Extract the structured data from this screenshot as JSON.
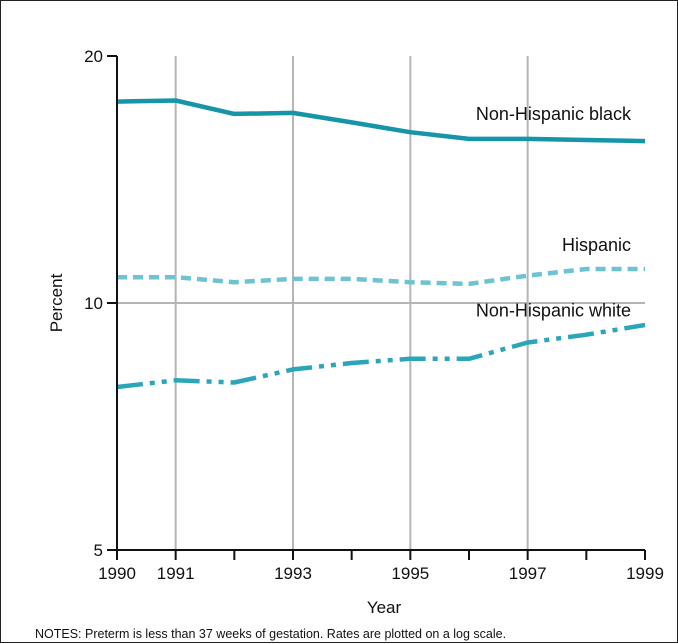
{
  "chart_data": {
    "type": "line",
    "title": "",
    "xlabel": "Year",
    "ylabel": "Percent",
    "yscale": "log",
    "ylim": [
      5,
      20
    ],
    "xlim": [
      1990,
      1999
    ],
    "x": [
      1990,
      1991,
      1992,
      1993,
      1994,
      1995,
      1996,
      1997,
      1998,
      1999
    ],
    "x_tick_labels": [
      "1990",
      "1991",
      "1993",
      "1995",
      "1997",
      "1999"
    ],
    "y_tick_labels": [
      "20",
      "10",
      "5"
    ],
    "grid": "vertical lines at 1991, 1993, 1995, 1997 and a horizontal line at 10",
    "series": [
      {
        "name": "Non-Hispanic black",
        "values": [
          17.6,
          17.65,
          17.0,
          17.05,
          16.6,
          16.15,
          15.85,
          15.85,
          15.8,
          15.75
        ],
        "color": "#1795a8",
        "line_style": "solid"
      },
      {
        "name": "Hispanic",
        "values": [
          10.75,
          10.75,
          10.6,
          10.7,
          10.7,
          10.6,
          10.55,
          10.8,
          11.0,
          11.0
        ],
        "color": "#6cc3d1",
        "line_style": "dashed"
      },
      {
        "name": "Non-Hispanic white",
        "values": [
          7.9,
          8.05,
          8.0,
          8.3,
          8.45,
          8.55,
          8.55,
          8.95,
          9.15,
          9.4
        ],
        "color": "#2aa6b8",
        "line_style": "dash-dot-dot"
      }
    ],
    "notes": "NOTES:  Preterm is less than 37 weeks of gestation. Rates are plotted on a log scale."
  }
}
